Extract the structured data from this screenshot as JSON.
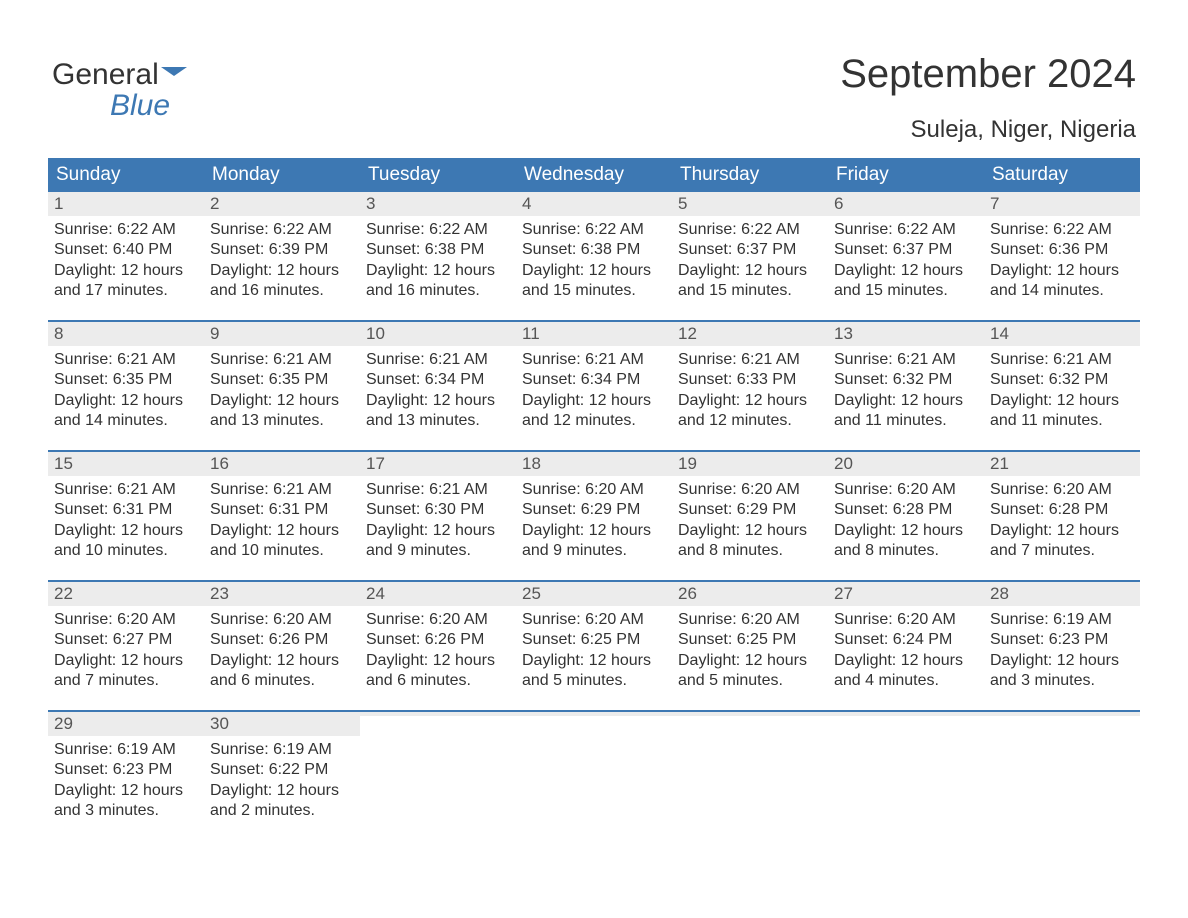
{
  "brand": {
    "part1": "General",
    "part2": "Blue"
  },
  "title": "September 2024",
  "location": "Suleja, Niger, Nigeria",
  "colors": {
    "header_bg": "#3d78b3",
    "header_text": "#ffffff",
    "daynum_bg": "#ececec",
    "week_border": "#3d78b3",
    "page_bg": "#ffffff",
    "body_text": "#333333",
    "brand_accent": "#3d78b3"
  },
  "weekdays": [
    "Sunday",
    "Monday",
    "Tuesday",
    "Wednesday",
    "Thursday",
    "Friday",
    "Saturday"
  ],
  "weeks": [
    [
      {
        "n": "1",
        "sunrise": "6:22 AM",
        "sunset": "6:40 PM",
        "daylight": "12 hours and 17 minutes."
      },
      {
        "n": "2",
        "sunrise": "6:22 AM",
        "sunset": "6:39 PM",
        "daylight": "12 hours and 16 minutes."
      },
      {
        "n": "3",
        "sunrise": "6:22 AM",
        "sunset": "6:38 PM",
        "daylight": "12 hours and 16 minutes."
      },
      {
        "n": "4",
        "sunrise": "6:22 AM",
        "sunset": "6:38 PM",
        "daylight": "12 hours and 15 minutes."
      },
      {
        "n": "5",
        "sunrise": "6:22 AM",
        "sunset": "6:37 PM",
        "daylight": "12 hours and 15 minutes."
      },
      {
        "n": "6",
        "sunrise": "6:22 AM",
        "sunset": "6:37 PM",
        "daylight": "12 hours and 15 minutes."
      },
      {
        "n": "7",
        "sunrise": "6:22 AM",
        "sunset": "6:36 PM",
        "daylight": "12 hours and 14 minutes."
      }
    ],
    [
      {
        "n": "8",
        "sunrise": "6:21 AM",
        "sunset": "6:35 PM",
        "daylight": "12 hours and 14 minutes."
      },
      {
        "n": "9",
        "sunrise": "6:21 AM",
        "sunset": "6:35 PM",
        "daylight": "12 hours and 13 minutes."
      },
      {
        "n": "10",
        "sunrise": "6:21 AM",
        "sunset": "6:34 PM",
        "daylight": "12 hours and 13 minutes."
      },
      {
        "n": "11",
        "sunrise": "6:21 AM",
        "sunset": "6:34 PM",
        "daylight": "12 hours and 12 minutes."
      },
      {
        "n": "12",
        "sunrise": "6:21 AM",
        "sunset": "6:33 PM",
        "daylight": "12 hours and 12 minutes."
      },
      {
        "n": "13",
        "sunrise": "6:21 AM",
        "sunset": "6:32 PM",
        "daylight": "12 hours and 11 minutes."
      },
      {
        "n": "14",
        "sunrise": "6:21 AM",
        "sunset": "6:32 PM",
        "daylight": "12 hours and 11 minutes."
      }
    ],
    [
      {
        "n": "15",
        "sunrise": "6:21 AM",
        "sunset": "6:31 PM",
        "daylight": "12 hours and 10 minutes."
      },
      {
        "n": "16",
        "sunrise": "6:21 AM",
        "sunset": "6:31 PM",
        "daylight": "12 hours and 10 minutes."
      },
      {
        "n": "17",
        "sunrise": "6:21 AM",
        "sunset": "6:30 PM",
        "daylight": "12 hours and 9 minutes."
      },
      {
        "n": "18",
        "sunrise": "6:20 AM",
        "sunset": "6:29 PM",
        "daylight": "12 hours and 9 minutes."
      },
      {
        "n": "19",
        "sunrise": "6:20 AM",
        "sunset": "6:29 PM",
        "daylight": "12 hours and 8 minutes."
      },
      {
        "n": "20",
        "sunrise": "6:20 AM",
        "sunset": "6:28 PM",
        "daylight": "12 hours and 8 minutes."
      },
      {
        "n": "21",
        "sunrise": "6:20 AM",
        "sunset": "6:28 PM",
        "daylight": "12 hours and 7 minutes."
      }
    ],
    [
      {
        "n": "22",
        "sunrise": "6:20 AM",
        "sunset": "6:27 PM",
        "daylight": "12 hours and 7 minutes."
      },
      {
        "n": "23",
        "sunrise": "6:20 AM",
        "sunset": "6:26 PM",
        "daylight": "12 hours and 6 minutes."
      },
      {
        "n": "24",
        "sunrise": "6:20 AM",
        "sunset": "6:26 PM",
        "daylight": "12 hours and 6 minutes."
      },
      {
        "n": "25",
        "sunrise": "6:20 AM",
        "sunset": "6:25 PM",
        "daylight": "12 hours and 5 minutes."
      },
      {
        "n": "26",
        "sunrise": "6:20 AM",
        "sunset": "6:25 PM",
        "daylight": "12 hours and 5 minutes."
      },
      {
        "n": "27",
        "sunrise": "6:20 AM",
        "sunset": "6:24 PM",
        "daylight": "12 hours and 4 minutes."
      },
      {
        "n": "28",
        "sunrise": "6:19 AM",
        "sunset": "6:23 PM",
        "daylight": "12 hours and 3 minutes."
      }
    ],
    [
      {
        "n": "29",
        "sunrise": "6:19 AM",
        "sunset": "6:23 PM",
        "daylight": "12 hours and 3 minutes."
      },
      {
        "n": "30",
        "sunrise": "6:19 AM",
        "sunset": "6:22 PM",
        "daylight": "12 hours and 2 minutes."
      },
      {
        "empty": true
      },
      {
        "empty": true
      },
      {
        "empty": true
      },
      {
        "empty": true
      },
      {
        "empty": true
      }
    ]
  ],
  "labels": {
    "sunrise_prefix": "Sunrise: ",
    "sunset_prefix": "Sunset: ",
    "daylight_prefix": "Daylight: "
  }
}
